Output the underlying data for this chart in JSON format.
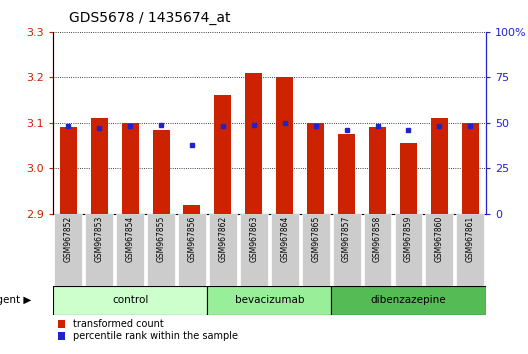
{
  "title": "GDS5678 / 1435674_at",
  "samples": [
    "GSM967852",
    "GSM967853",
    "GSM967854",
    "GSM967855",
    "GSM967856",
    "GSM967862",
    "GSM967863",
    "GSM967864",
    "GSM967865",
    "GSM967857",
    "GSM967858",
    "GSM967859",
    "GSM967860",
    "GSM967861"
  ],
  "red_values": [
    3.09,
    3.11,
    3.1,
    3.085,
    2.92,
    3.16,
    3.21,
    3.2,
    3.1,
    3.075,
    3.09,
    3.055,
    3.11,
    3.1
  ],
  "blue_values": [
    48,
    47,
    48,
    49,
    38,
    48,
    49,
    50,
    48,
    46,
    48,
    46,
    48,
    48
  ],
  "ylim_left": [
    2.9,
    3.3
  ],
  "ylim_right": [
    0,
    100
  ],
  "yticks_left": [
    2.9,
    3.0,
    3.1,
    3.2,
    3.3
  ],
  "yticks_right": [
    0,
    25,
    50,
    75,
    100
  ],
  "groups": [
    {
      "label": "control",
      "start": 0,
      "end": 5,
      "color": "#ccffcc"
    },
    {
      "label": "bevacizumab",
      "start": 5,
      "end": 9,
      "color": "#99ee99"
    },
    {
      "label": "dibenzazepine",
      "start": 9,
      "end": 14,
      "color": "#55bb55"
    }
  ],
  "agent_label": "agent",
  "bar_color": "#cc2200",
  "dot_color": "#2222cc",
  "bar_bottom": 2.9,
  "bar_width": 0.55,
  "tick_bg": "#cccccc",
  "legend_red": "transformed count",
  "legend_blue": "percentile rank within the sample",
  "grid_color": "black",
  "title_fontsize": 10,
  "axis_fontsize": 8,
  "label_fontsize": 7
}
